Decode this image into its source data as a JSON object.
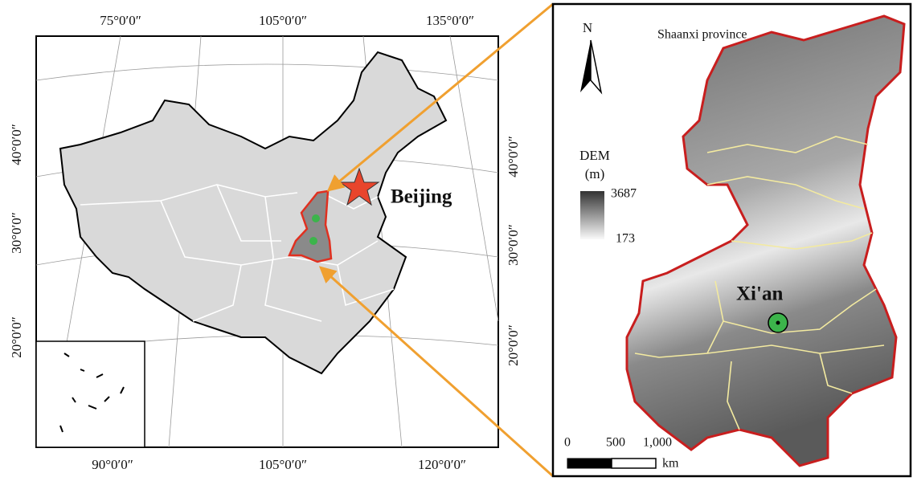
{
  "left_map": {
    "top_labels": [
      "75°0′0″",
      "105°0′0″",
      "135°0′0″"
    ],
    "bottom_labels": [
      "90°0′0″",
      "105°0′0″",
      "120°0′0″"
    ],
    "left_labels": [
      "40°0′0″",
      "30°0′0″",
      "20°0′0″"
    ],
    "right_labels": [
      "40°0′0″",
      "30°0′0″",
      "20°0′0″"
    ],
    "city_label": "Beijing"
  },
  "right_map": {
    "north_label": "N",
    "title": "Shaanxi province",
    "legend": {
      "title_line1": "DEM",
      "title_line2": "(m)",
      "max": 3687,
      "min": 173
    },
    "city_label": "Xi'an",
    "scale_bar": {
      "labels": [
        0,
        500,
        "1,000"
      ],
      "unit": "km"
    }
  }
}
